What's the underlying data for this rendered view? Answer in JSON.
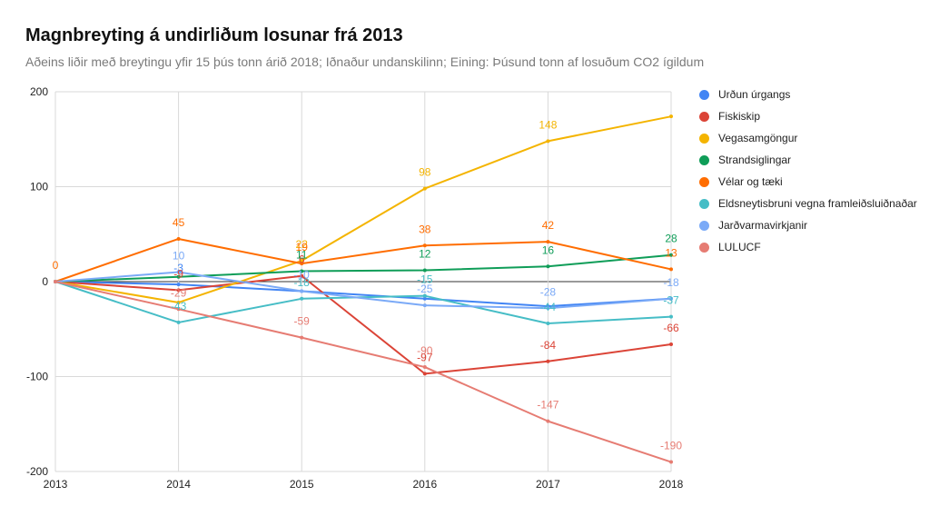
{
  "chart_data": {
    "type": "line",
    "title": "Magnbreyting á undirliðum losunar frá 2013",
    "subtitle": "Aðeins liðir með breytingu yfir 15 þús tonn árið 2018; Iðnaður undanskilinn; Eining: Þúsund tonn af losuðum CO2 ígildum",
    "xlabel": "",
    "ylabel": "",
    "x": [
      "2013",
      "2014",
      "2015",
      "2016",
      "2017",
      "2018"
    ],
    "ylim": [
      -200,
      200
    ],
    "yticks": [
      "200",
      "100",
      "0",
      "-100",
      "-200"
    ],
    "grid": true,
    "legend_position": "right",
    "series": [
      {
        "name": "Urðun úrgangs",
        "color": "#4285f4",
        "values": [
          0,
          -3,
          -10,
          -18,
          -26,
          -18
        ],
        "labels": [
          "",
          "-3",
          "",
          "",
          "",
          ""
        ]
      },
      {
        "name": "Fiskiskip",
        "color": "#db4437",
        "values": [
          0,
          -9,
          6,
          -97,
          -84,
          -66
        ],
        "labels": [
          "",
          "-9",
          "6",
          "-97",
          "-84",
          "-66"
        ]
      },
      {
        "name": "Vegasamgöngur",
        "color": "#f4b400",
        "values": [
          0,
          -22,
          22,
          98,
          148,
          174
        ],
        "labels": [
          "",
          "",
          "22",
          "98",
          "148",
          ""
        ]
      },
      {
        "name": "Strandsiglingar",
        "color": "#0f9d58",
        "values": [
          0,
          5,
          11,
          12,
          16,
          28
        ],
        "labels": [
          "",
          "",
          "11",
          "12",
          "16",
          "28"
        ]
      },
      {
        "name": "Vélar og tæki",
        "color": "#ff6d00",
        "values": [
          0,
          45,
          19,
          38,
          42,
          13
        ],
        "labels": [
          "0",
          "45",
          "19",
          "38",
          "42",
          "13"
        ]
      },
      {
        "name": "Eldsneytisbruni vegna framleiðsluiðnaðar",
        "color": "#46bdc6",
        "values": [
          0,
          -43,
          -18,
          -15,
          -44,
          -37
        ],
        "labels": [
          "",
          "-43",
          "-18",
          "-15",
          "-44",
          "-37"
        ]
      },
      {
        "name": "Jarðvarmavirkjanir",
        "color": "#7baaf7",
        "values": [
          0,
          10,
          -10,
          -25,
          -28,
          -18
        ],
        "labels": [
          "",
          "10",
          "-10",
          "-25",
          "-28",
          "-18"
        ]
      },
      {
        "name": "LULUCF",
        "color": "#e67c73",
        "values": [
          0,
          -29,
          -59,
          -90,
          -147,
          -190
        ],
        "labels": [
          "",
          "-29",
          "-59",
          "-90",
          "-147",
          "-190"
        ]
      }
    ]
  }
}
